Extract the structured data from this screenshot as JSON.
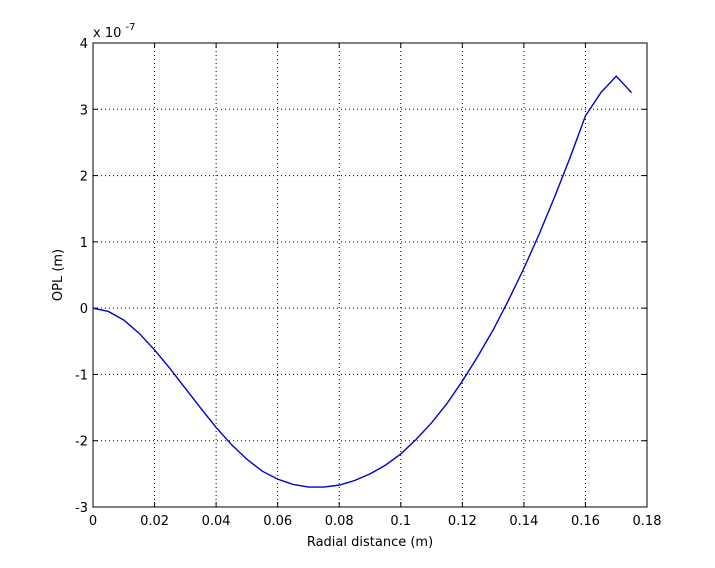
{
  "chart_data": {
    "type": "line",
    "title": "",
    "xlabel": "Radial distance (m)",
    "ylabel": "OPL (m)",
    "y_multiplier": "x 10",
    "y_multiplier_exponent": "-7",
    "xlim": [
      0,
      0.18
    ],
    "ylim": [
      -3,
      4
    ],
    "x_ticks": [
      0,
      0.02,
      0.04,
      0.06,
      0.08,
      0.1,
      0.12,
      0.14,
      0.16,
      0.18
    ],
    "x_tick_labels": [
      "0",
      "0.02",
      "0.04",
      "0.06",
      "0.08",
      "0.1",
      "0.12",
      "0.14",
      "0.16",
      "0.18"
    ],
    "y_ticks": [
      -3,
      -2,
      -1,
      0,
      1,
      2,
      3,
      4
    ],
    "y_tick_labels": [
      "-3",
      "-2",
      "-1",
      "0",
      "1",
      "2",
      "3",
      "4"
    ],
    "grid": true,
    "line_color": "#0000cc",
    "series": [
      {
        "x": [
          0,
          0.005,
          0.01,
          0.015,
          0.02,
          0.025,
          0.03,
          0.035,
          0.04,
          0.045,
          0.05,
          0.055,
          0.06,
          0.065,
          0.07,
          0.075,
          0.08,
          0.085,
          0.09,
          0.095,
          0.1,
          0.105,
          0.11,
          0.115,
          0.12,
          0.125,
          0.13,
          0.135,
          0.14,
          0.145,
          0.15,
          0.155,
          0.16,
          0.165,
          0.17,
          0.175
        ],
        "y": [
          0,
          -0.05,
          -0.18,
          -0.38,
          -0.63,
          -0.91,
          -1.21,
          -1.51,
          -1.8,
          -2.06,
          -2.28,
          -2.46,
          -2.58,
          -2.66,
          -2.7,
          -2.7,
          -2.67,
          -2.6,
          -2.5,
          -2.37,
          -2.2,
          -1.98,
          -1.73,
          -1.44,
          -1.1,
          -0.73,
          -0.33,
          0.12,
          0.6,
          1.12,
          1.68,
          2.27,
          2.9,
          3.25,
          3.5,
          3.25
        ]
      }
    ]
  }
}
